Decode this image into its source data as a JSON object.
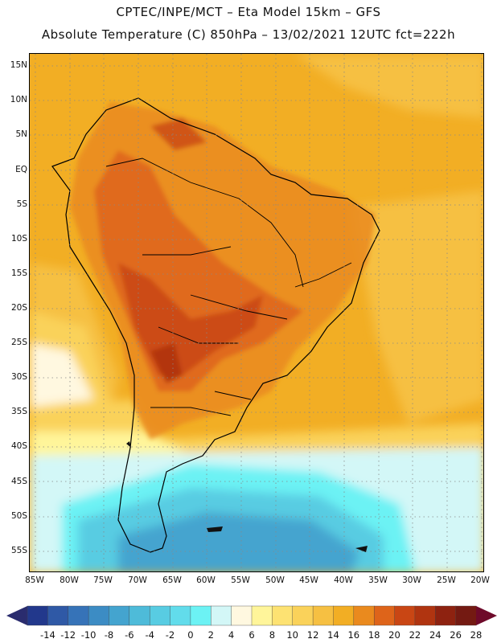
{
  "header": {
    "title_line1": "CPTEC/INPE/MCT –  Eta Model 15km – GFS",
    "title_line2": "Absolute Temperature (C) 850hPa – 13/02/2021 12UTC fct=222h"
  },
  "map": {
    "region": "South America",
    "variable": "Absolute Temperature (C) at 850hPa",
    "lat_labels": [
      "15N",
      "10N",
      "5N",
      "EQ",
      "5S",
      "10S",
      "15S",
      "20S",
      "25S",
      "30S",
      "35S",
      "40S",
      "45S",
      "50S",
      "55S"
    ],
    "lon_labels": [
      "85W",
      "80W",
      "75W",
      "70W",
      "65W",
      "60W",
      "55W",
      "50W",
      "45W",
      "40W",
      "35W",
      "30W",
      "25W",
      "20W"
    ],
    "grid_style": "dotted"
  },
  "colorbar": {
    "labels": [
      "-14",
      "-12",
      "-10",
      "-8",
      "-6",
      "-4",
      "-2",
      "0",
      "2",
      "4",
      "6",
      "8",
      "10",
      "12",
      "14",
      "16",
      "18",
      "20",
      "22",
      "24",
      "26",
      "28"
    ],
    "colors": [
      "#22388c",
      "#2f59a6",
      "#3673b8",
      "#3c8cc4",
      "#44a4cf",
      "#4ebbd9",
      "#58cce2",
      "#62dceb",
      "#6cf2f4",
      "#d3f7f7",
      "#fff8e0",
      "#fff59a",
      "#fde272",
      "#fad25a",
      "#f6c042",
      "#f2ae24",
      "#ea8a1e",
      "#de641a",
      "#c94614",
      "#b03410",
      "#8e2210",
      "#741a12"
    ],
    "low_arrow_color": "#2a2c6e",
    "high_arrow_color": "#6e0a2a"
  }
}
